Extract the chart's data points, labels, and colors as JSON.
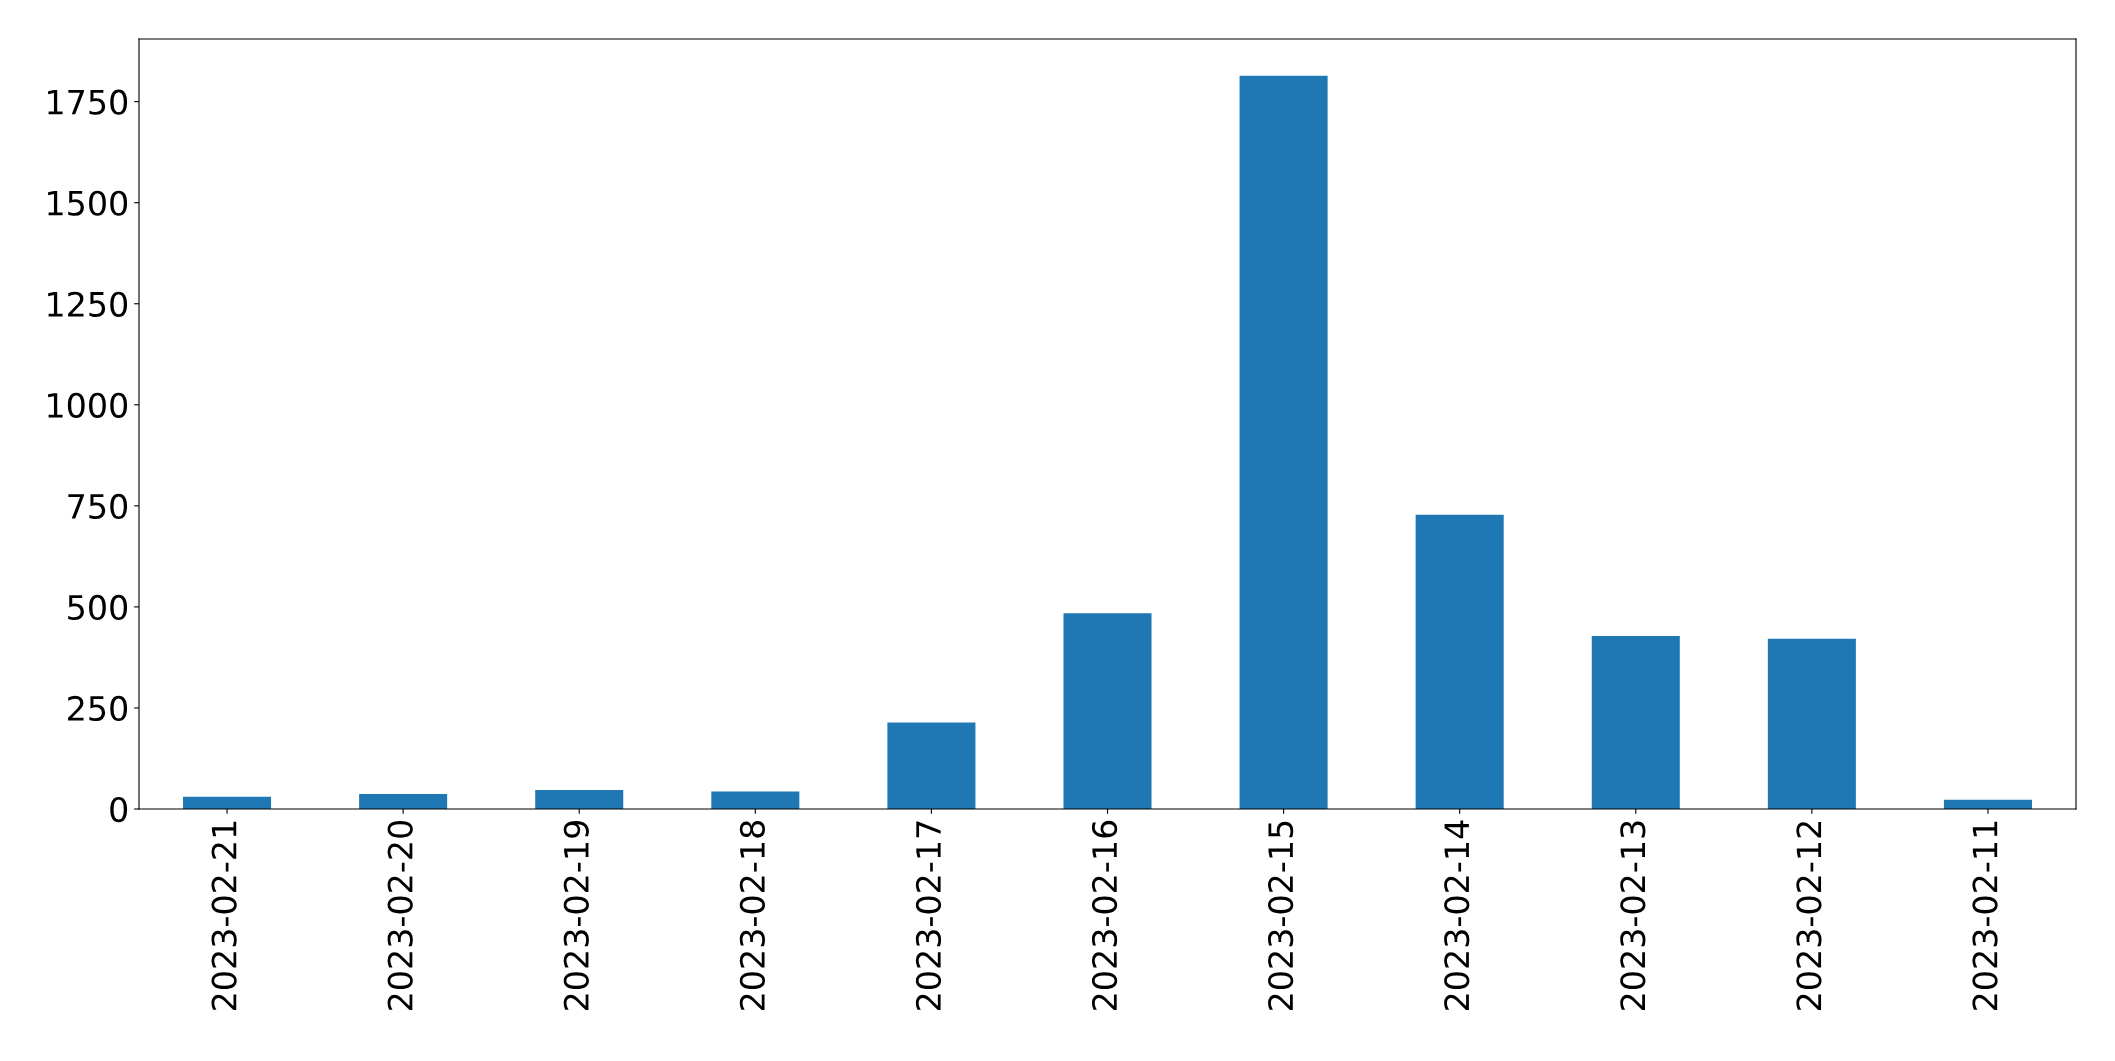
{
  "chart_data": {
    "type": "bar",
    "categories": [
      "2023-02-21",
      "2023-02-20",
      "2023-02-19",
      "2023-02-18",
      "2023-02-17",
      "2023-02-16",
      "2023-02-15",
      "2023-02-14",
      "2023-02-13",
      "2023-02-12",
      "2023-02-11"
    ],
    "values": [
      30,
      37,
      47,
      43,
      214,
      484,
      1814,
      728,
      428,
      421,
      23
    ],
    "color": "#1f77b4",
    "ylim": [
      0,
      1905
    ],
    "yticks": [
      0,
      250,
      500,
      750,
      1000,
      1250,
      1500,
      1750
    ],
    "grid": false,
    "legend": false
  }
}
